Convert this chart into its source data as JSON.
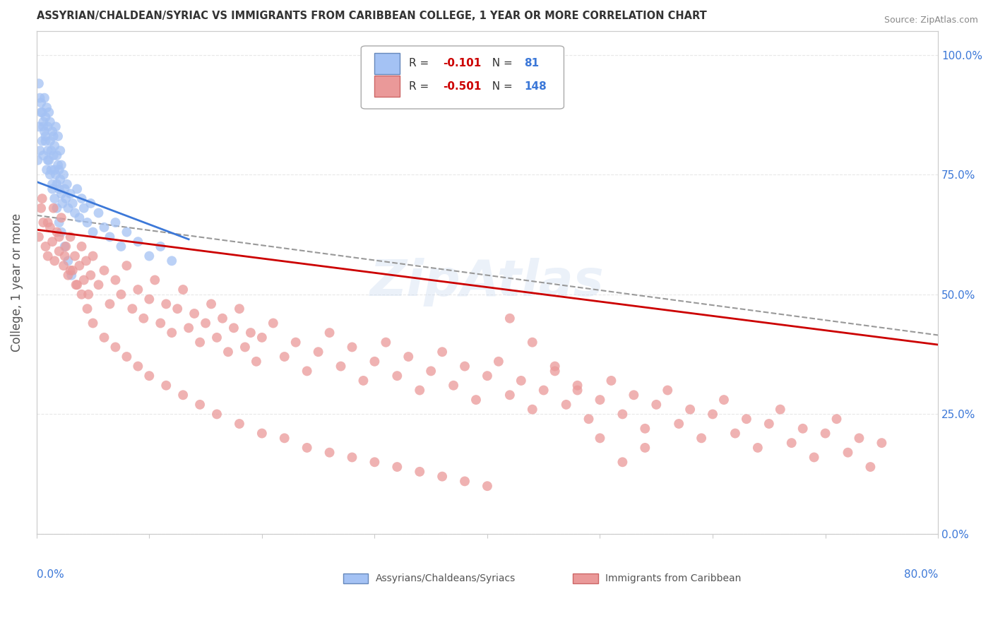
{
  "title": "ASSYRIAN/CHALDEAN/SYRIAC VS IMMIGRANTS FROM CARIBBEAN COLLEGE, 1 YEAR OR MORE CORRELATION CHART",
  "source": "Source: ZipAtlas.com",
  "ylabel": "College, 1 year or more",
  "legend_blue_r": "-0.101",
  "legend_blue_n": "81",
  "legend_pink_r": "-0.501",
  "legend_pink_n": "148",
  "legend_blue_label": "Assyrians/Chaldeans/Syriacs",
  "legend_pink_label": "Immigrants from Caribbean",
  "blue_color": "#a4c2f4",
  "pink_color": "#ea9999",
  "blue_line_color": "#3c78d8",
  "pink_line_color": "#cc0000",
  "dashed_line_color": "#999999",
  "xlim": [
    0.0,
    0.8
  ],
  "ylim": [
    0.0,
    1.05
  ],
  "blue_scatter_x": [
    0.001,
    0.002,
    0.003,
    0.004,
    0.005,
    0.005,
    0.006,
    0.006,
    0.007,
    0.007,
    0.008,
    0.008,
    0.009,
    0.009,
    0.01,
    0.01,
    0.011,
    0.011,
    0.012,
    0.012,
    0.013,
    0.013,
    0.014,
    0.014,
    0.015,
    0.015,
    0.016,
    0.016,
    0.017,
    0.017,
    0.018,
    0.018,
    0.019,
    0.019,
    0.02,
    0.02,
    0.021,
    0.021,
    0.022,
    0.022,
    0.023,
    0.024,
    0.025,
    0.026,
    0.027,
    0.028,
    0.03,
    0.032,
    0.034,
    0.036,
    0.038,
    0.04,
    0.042,
    0.045,
    0.048,
    0.05,
    0.055,
    0.06,
    0.065,
    0.07,
    0.075,
    0.08,
    0.09,
    0.1,
    0.11,
    0.12,
    0.002,
    0.003,
    0.004,
    0.006,
    0.008,
    0.01,
    0.012,
    0.014,
    0.016,
    0.018,
    0.02,
    0.022,
    0.025,
    0.028,
    0.031
  ],
  "blue_scatter_y": [
    0.78,
    0.85,
    0.8,
    0.9,
    0.88,
    0.82,
    0.86,
    0.79,
    0.84,
    0.91,
    0.87,
    0.83,
    0.89,
    0.76,
    0.85,
    0.8,
    0.78,
    0.88,
    0.82,
    0.86,
    0.76,
    0.8,
    0.84,
    0.72,
    0.79,
    0.83,
    0.76,
    0.81,
    0.75,
    0.85,
    0.73,
    0.79,
    0.77,
    0.83,
    0.72,
    0.76,
    0.74,
    0.8,
    0.71,
    0.77,
    0.69,
    0.75,
    0.72,
    0.7,
    0.73,
    0.68,
    0.71,
    0.69,
    0.67,
    0.72,
    0.66,
    0.7,
    0.68,
    0.65,
    0.69,
    0.63,
    0.67,
    0.64,
    0.62,
    0.65,
    0.6,
    0.63,
    0.61,
    0.58,
    0.6,
    0.57,
    0.94,
    0.91,
    0.88,
    0.85,
    0.82,
    0.78,
    0.75,
    0.73,
    0.7,
    0.68,
    0.65,
    0.63,
    0.6,
    0.57,
    0.54
  ],
  "pink_scatter_x": [
    0.002,
    0.004,
    0.006,
    0.008,
    0.01,
    0.012,
    0.014,
    0.016,
    0.018,
    0.02,
    0.022,
    0.024,
    0.026,
    0.028,
    0.03,
    0.032,
    0.034,
    0.036,
    0.038,
    0.04,
    0.042,
    0.044,
    0.046,
    0.048,
    0.05,
    0.055,
    0.06,
    0.065,
    0.07,
    0.075,
    0.08,
    0.085,
    0.09,
    0.095,
    0.1,
    0.105,
    0.11,
    0.115,
    0.12,
    0.125,
    0.13,
    0.135,
    0.14,
    0.145,
    0.15,
    0.155,
    0.16,
    0.165,
    0.17,
    0.175,
    0.18,
    0.185,
    0.19,
    0.195,
    0.2,
    0.21,
    0.22,
    0.23,
    0.24,
    0.25,
    0.26,
    0.27,
    0.28,
    0.29,
    0.3,
    0.31,
    0.32,
    0.33,
    0.34,
    0.35,
    0.36,
    0.37,
    0.38,
    0.39,
    0.4,
    0.41,
    0.42,
    0.43,
    0.44,
    0.45,
    0.46,
    0.47,
    0.48,
    0.49,
    0.5,
    0.51,
    0.52,
    0.53,
    0.54,
    0.55,
    0.56,
    0.57,
    0.58,
    0.59,
    0.6,
    0.61,
    0.62,
    0.63,
    0.64,
    0.65,
    0.66,
    0.67,
    0.68,
    0.69,
    0.7,
    0.71,
    0.72,
    0.73,
    0.74,
    0.75,
    0.005,
    0.01,
    0.015,
    0.02,
    0.025,
    0.03,
    0.035,
    0.04,
    0.045,
    0.05,
    0.06,
    0.07,
    0.08,
    0.09,
    0.1,
    0.115,
    0.13,
    0.145,
    0.16,
    0.18,
    0.2,
    0.22,
    0.24,
    0.26,
    0.28,
    0.3,
    0.32,
    0.34,
    0.36,
    0.38,
    0.4,
    0.42,
    0.44,
    0.46,
    0.48,
    0.5,
    0.52,
    0.54
  ],
  "pink_scatter_y": [
    0.62,
    0.68,
    0.65,
    0.6,
    0.58,
    0.64,
    0.61,
    0.57,
    0.63,
    0.59,
    0.66,
    0.56,
    0.6,
    0.54,
    0.62,
    0.55,
    0.58,
    0.52,
    0.56,
    0.6,
    0.53,
    0.57,
    0.5,
    0.54,
    0.58,
    0.52,
    0.55,
    0.48,
    0.53,
    0.5,
    0.56,
    0.47,
    0.51,
    0.45,
    0.49,
    0.53,
    0.44,
    0.48,
    0.42,
    0.47,
    0.51,
    0.43,
    0.46,
    0.4,
    0.44,
    0.48,
    0.41,
    0.45,
    0.38,
    0.43,
    0.47,
    0.39,
    0.42,
    0.36,
    0.41,
    0.44,
    0.37,
    0.4,
    0.34,
    0.38,
    0.42,
    0.35,
    0.39,
    0.32,
    0.36,
    0.4,
    0.33,
    0.37,
    0.3,
    0.34,
    0.38,
    0.31,
    0.35,
    0.28,
    0.33,
    0.36,
    0.29,
    0.32,
    0.26,
    0.3,
    0.34,
    0.27,
    0.31,
    0.24,
    0.28,
    0.32,
    0.25,
    0.29,
    0.22,
    0.27,
    0.3,
    0.23,
    0.26,
    0.2,
    0.25,
    0.28,
    0.21,
    0.24,
    0.18,
    0.23,
    0.26,
    0.19,
    0.22,
    0.16,
    0.21,
    0.24,
    0.17,
    0.2,
    0.14,
    0.19,
    0.7,
    0.65,
    0.68,
    0.62,
    0.58,
    0.55,
    0.52,
    0.5,
    0.47,
    0.44,
    0.41,
    0.39,
    0.37,
    0.35,
    0.33,
    0.31,
    0.29,
    0.27,
    0.25,
    0.23,
    0.21,
    0.2,
    0.18,
    0.17,
    0.16,
    0.15,
    0.14,
    0.13,
    0.12,
    0.11,
    0.1,
    0.45,
    0.4,
    0.35,
    0.3,
    0.2,
    0.15,
    0.18
  ],
  "blue_trend_x": [
    0.0,
    0.135
  ],
  "blue_trend_y": [
    0.735,
    0.615
  ],
  "pink_trend_x": [
    0.0,
    0.8
  ],
  "pink_trend_y": [
    0.635,
    0.395
  ],
  "combined_trend_x": [
    0.0,
    0.8
  ],
  "combined_trend_y": [
    0.665,
    0.415
  ],
  "watermark": "ZipAtlas",
  "grid_color": "#e8e8e8",
  "grid_style": "--"
}
